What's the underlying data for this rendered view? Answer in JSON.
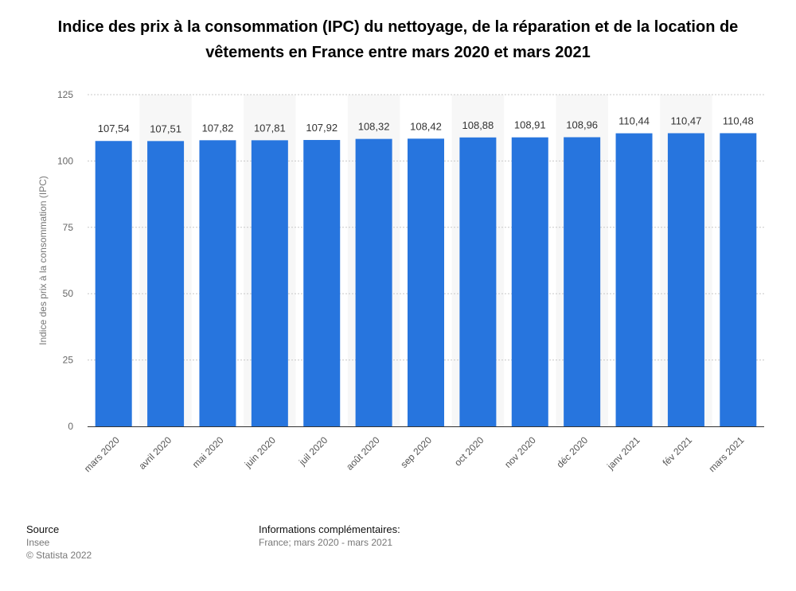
{
  "title": "Indice des prix à la consommation (IPC) du nettoyage, de la réparation et de la location de vêtements en France entre mars 2020 et mars 2021",
  "chart_data": {
    "type": "bar",
    "categories": [
      "mars 2020",
      "avril 2020",
      "mai 2020",
      "juin 2020",
      "juil 2020",
      "août 2020",
      "sep 2020",
      "oct 2020",
      "nov 2020",
      "déc 2020",
      "janv 2021",
      "fév 2021",
      "mars 2021"
    ],
    "values": [
      107.54,
      107.51,
      107.82,
      107.81,
      107.92,
      108.32,
      108.42,
      108.88,
      108.91,
      108.96,
      110.44,
      110.47,
      110.48
    ],
    "value_labels": [
      "107,54",
      "107,51",
      "107,82",
      "107,81",
      "107,92",
      "108,32",
      "108,42",
      "108,88",
      "108,91",
      "108,96",
      "110,44",
      "110,47",
      "110,48"
    ],
    "ylabel": "Indice des prix à la consommation (IPC)",
    "xlabel": "",
    "ylim": [
      0,
      125
    ],
    "yticks": [
      0,
      25,
      50,
      75,
      100,
      125
    ],
    "grid": true,
    "bar_color": "#2775de"
  },
  "footer": {
    "source_heading": "Source",
    "source_name": "Insee",
    "copyright": "© Statista 2022",
    "info_heading": "Informations complémentaires:",
    "info_text": "France; mars 2020 - mars 2021"
  }
}
